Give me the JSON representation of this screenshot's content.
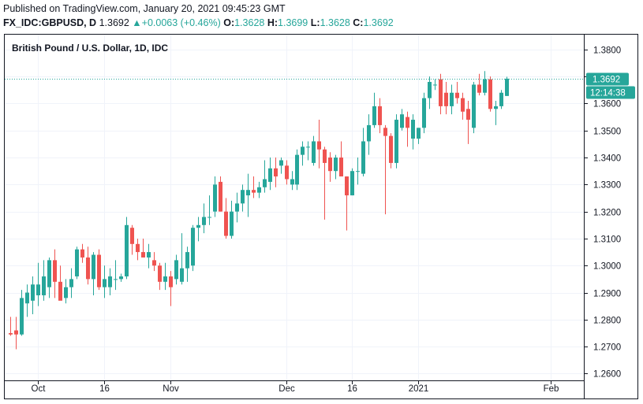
{
  "header": {
    "published": "Published on TradingView.com, January 20, 2021 09:45:23 GMT",
    "symbol": "FX_IDC:GBPUSD, D",
    "last": "1.3692",
    "change": "+0.0063 (+0.46%)",
    "open_label": "O:",
    "open": "1.3628",
    "high_label": "H:",
    "high": "1.3699",
    "low_label": "L:",
    "low": "1.3628",
    "close_label": "C:",
    "close": "1.3692"
  },
  "colors": {
    "up": "#26a69a",
    "down": "#ef5350",
    "grid": "#f0f3fa",
    "axis": "#131722",
    "price_line": "#26a69a"
  },
  "chart_data": {
    "type": "candlestick",
    "title": "British Pound / U.S. Dollar, 1D, IDC",
    "current_price_label": "1.3692",
    "countdown_label": "12:14:38",
    "last_price": 1.3692,
    "ylim": [
      1.2575,
      1.3855
    ],
    "y_ticks": [
      1.26,
      1.27,
      1.28,
      1.29,
      1.3,
      1.31,
      1.32,
      1.33,
      1.34,
      1.35,
      1.36,
      1.37,
      1.38
    ],
    "y_tick_labels": [
      "1.2600",
      "1.2700",
      "1.2800",
      "1.2900",
      "1.3000",
      "1.3100",
      "1.3200",
      "1.3300",
      "1.3400",
      "1.3500",
      "1.3600",
      "1.3700",
      "1.3800"
    ],
    "x_labels": [
      {
        "label": "Oct",
        "index": 5
      },
      {
        "label": "16",
        "index": 17
      },
      {
        "label": "Nov",
        "index": 29
      },
      {
        "label": "Dec",
        "index": 50
      },
      {
        "label": "16",
        "index": 62
      },
      {
        "label": "2021",
        "index": 74
      },
      {
        "label": "Feb",
        "index": 98
      }
    ],
    "x_range": [
      -1,
      104
    ],
    "candles": [
      {
        "o": 1.275,
        "h": 1.281,
        "l": 1.274,
        "c": 1.2745
      },
      {
        "o": 1.276,
        "h": 1.281,
        "l": 1.269,
        "c": 1.2745
      },
      {
        "o": 1.2745,
        "h": 1.291,
        "l": 1.274,
        "c": 1.288
      },
      {
        "o": 1.286,
        "h": 1.293,
        "l": 1.281,
        "c": 1.29
      },
      {
        "o": 1.287,
        "h": 1.296,
        "l": 1.282,
        "c": 1.293
      },
      {
        "o": 1.289,
        "h": 1.301,
        "l": 1.285,
        "c": 1.293
      },
      {
        "o": 1.289,
        "h": 1.302,
        "l": 1.287,
        "c": 1.296
      },
      {
        "o": 1.292,
        "h": 1.303,
        "l": 1.288,
        "c": 1.302
      },
      {
        "o": 1.302,
        "h": 1.306,
        "l": 1.288,
        "c": 1.294
      },
      {
        "o": 1.294,
        "h": 1.3,
        "l": 1.288,
        "c": 1.287
      },
      {
        "o": 1.288,
        "h": 1.295,
        "l": 1.286,
        "c": 1.292
      },
      {
        "o": 1.292,
        "h": 1.299,
        "l": 1.288,
        "c": 1.295
      },
      {
        "o": 1.296,
        "h": 1.307,
        "l": 1.295,
        "c": 1.306
      },
      {
        "o": 1.306,
        "h": 1.308,
        "l": 1.301,
        "c": 1.303
      },
      {
        "o": 1.303,
        "h": 1.307,
        "l": 1.293,
        "c": 1.295
      },
      {
        "o": 1.295,
        "h": 1.305,
        "l": 1.289,
        "c": 1.304
      },
      {
        "o": 1.304,
        "h": 1.306,
        "l": 1.291,
        "c": 1.292
      },
      {
        "o": 1.292,
        "h": 1.3,
        "l": 1.288,
        "c": 1.295
      },
      {
        "o": 1.292,
        "h": 1.299,
        "l": 1.289,
        "c": 1.296
      },
      {
        "o": 1.295,
        "h": 1.302,
        "l": 1.291,
        "c": 1.295
      },
      {
        "o": 1.295,
        "h": 1.297,
        "l": 1.294,
        "c": 1.296
      },
      {
        "o": 1.296,
        "h": 1.318,
        "l": 1.295,
        "c": 1.315
      },
      {
        "o": 1.314,
        "h": 1.315,
        "l": 1.304,
        "c": 1.308
      },
      {
        "o": 1.308,
        "h": 1.31,
        "l": 1.302,
        "c": 1.305
      },
      {
        "o": 1.305,
        "h": 1.31,
        "l": 1.303,
        "c": 1.303
      },
      {
        "o": 1.303,
        "h": 1.308,
        "l": 1.299,
        "c": 1.305
      },
      {
        "o": 1.302,
        "h": 1.305,
        "l": 1.298,
        "c": 1.3
      },
      {
        "o": 1.3,
        "h": 1.301,
        "l": 1.291,
        "c": 1.294
      },
      {
        "o": 1.294,
        "h": 1.301,
        "l": 1.291,
        "c": 1.296
      },
      {
        "o": 1.296,
        "h": 1.298,
        "l": 1.285,
        "c": 1.292
      },
      {
        "o": 1.295,
        "h": 1.304,
        "l": 1.293,
        "c": 1.302
      },
      {
        "o": 1.294,
        "h": 1.312,
        "l": 1.293,
        "c": 1.299
      },
      {
        "o": 1.299,
        "h": 1.307,
        "l": 1.294,
        "c": 1.305
      },
      {
        "o": 1.3,
        "h": 1.315,
        "l": 1.298,
        "c": 1.314
      },
      {
        "o": 1.314,
        "h": 1.318,
        "l": 1.309,
        "c": 1.315
      },
      {
        "o": 1.315,
        "h": 1.323,
        "l": 1.312,
        "c": 1.318
      },
      {
        "o": 1.318,
        "h": 1.326,
        "l": 1.315,
        "c": 1.318
      },
      {
        "o": 1.32,
        "h": 1.333,
        "l": 1.318,
        "c": 1.33
      },
      {
        "o": 1.331,
        "h": 1.333,
        "l": 1.32,
        "c": 1.32
      },
      {
        "o": 1.32,
        "h": 1.325,
        "l": 1.31,
        "c": 1.311
      },
      {
        "o": 1.311,
        "h": 1.324,
        "l": 1.31,
        "c": 1.32
      },
      {
        "o": 1.32,
        "h": 1.327,
        "l": 1.316,
        "c": 1.323
      },
      {
        "o": 1.323,
        "h": 1.33,
        "l": 1.32,
        "c": 1.328
      },
      {
        "o": 1.326,
        "h": 1.334,
        "l": 1.318,
        "c": 1.328
      },
      {
        "o": 1.328,
        "h": 1.333,
        "l": 1.325,
        "c": 1.327
      },
      {
        "o": 1.327,
        "h": 1.331,
        "l": 1.325,
        "c": 1.329
      },
      {
        "o": 1.329,
        "h": 1.339,
        "l": 1.327,
        "c": 1.332
      },
      {
        "o": 1.331,
        "h": 1.34,
        "l": 1.328,
        "c": 1.336
      },
      {
        "o": 1.336,
        "h": 1.34,
        "l": 1.329,
        "c": 1.333
      },
      {
        "o": 1.337,
        "h": 1.34,
        "l": 1.334,
        "c": 1.339
      },
      {
        "o": 1.337,
        "h": 1.339,
        "l": 1.33,
        "c": 1.332
      },
      {
        "o": 1.33,
        "h": 1.335,
        "l": 1.328,
        "c": 1.332
      },
      {
        "o": 1.33,
        "h": 1.343,
        "l": 1.328,
        "c": 1.341
      },
      {
        "o": 1.341,
        "h": 1.346,
        "l": 1.337,
        "c": 1.344
      },
      {
        "o": 1.344,
        "h": 1.346,
        "l": 1.339,
        "c": 1.344
      },
      {
        "o": 1.338,
        "h": 1.348,
        "l": 1.337,
        "c": 1.346
      },
      {
        "o": 1.346,
        "h": 1.354,
        "l": 1.336,
        "c": 1.343
      },
      {
        "o": 1.343,
        "h": 1.344,
        "l": 1.317,
        "c": 1.338
      },
      {
        "o": 1.34,
        "h": 1.342,
        "l": 1.331,
        "c": 1.335
      },
      {
        "o": 1.335,
        "h": 1.341,
        "l": 1.332,
        "c": 1.34
      },
      {
        "o": 1.34,
        "h": 1.346,
        "l": 1.333,
        "c": 1.333
      },
      {
        "o": 1.333,
        "h": 1.333,
        "l": 1.313,
        "c": 1.326
      },
      {
        "o": 1.326,
        "h": 1.336,
        "l": 1.326,
        "c": 1.335
      },
      {
        "o": 1.335,
        "h": 1.34,
        "l": 1.33,
        "c": 1.335
      },
      {
        "o": 1.334,
        "h": 1.351,
        "l": 1.333,
        "c": 1.346
      },
      {
        "o": 1.346,
        "h": 1.356,
        "l": 1.341,
        "c": 1.352
      },
      {
        "o": 1.352,
        "h": 1.364,
        "l": 1.351,
        "c": 1.359
      },
      {
        "o": 1.359,
        "h": 1.362,
        "l": 1.349,
        "c": 1.352
      },
      {
        "o": 1.351,
        "h": 1.352,
        "l": 1.319,
        "c": 1.348
      },
      {
        "o": 1.348,
        "h": 1.349,
        "l": 1.336,
        "c": 1.338
      },
      {
        "o": 1.338,
        "h": 1.356,
        "l": 1.336,
        "c": 1.354
      },
      {
        "o": 1.351,
        "h": 1.358,
        "l": 1.35,
        "c": 1.356
      },
      {
        "o": 1.355,
        "h": 1.357,
        "l": 1.344,
        "c": 1.351
      },
      {
        "o": 1.347,
        "h": 1.356,
        "l": 1.343,
        "c": 1.354
      },
      {
        "o": 1.347,
        "h": 1.351,
        "l": 1.345,
        "c": 1.351
      },
      {
        "o": 1.351,
        "h": 1.364,
        "l": 1.349,
        "c": 1.362
      },
      {
        "o": 1.362,
        "h": 1.37,
        "l": 1.358,
        "c": 1.368
      },
      {
        "o": 1.367,
        "h": 1.369,
        "l": 1.365,
        "c": 1.367
      },
      {
        "o": 1.369,
        "h": 1.371,
        "l": 1.356,
        "c": 1.359
      },
      {
        "o": 1.364,
        "h": 1.368,
        "l": 1.356,
        "c": 1.359
      },
      {
        "o": 1.359,
        "h": 1.367,
        "l": 1.356,
        "c": 1.364
      },
      {
        "o": 1.364,
        "h": 1.368,
        "l": 1.36,
        "c": 1.362
      },
      {
        "o": 1.362,
        "h": 1.364,
        "l": 1.354,
        "c": 1.357
      },
      {
        "o": 1.358,
        "h": 1.361,
        "l": 1.345,
        "c": 1.354
      },
      {
        "o": 1.351,
        "h": 1.368,
        "l": 1.349,
        "c": 1.367
      },
      {
        "o": 1.367,
        "h": 1.371,
        "l": 1.363,
        "c": 1.364
      },
      {
        "o": 1.364,
        "h": 1.372,
        "l": 1.363,
        "c": 1.369
      },
      {
        "o": 1.369,
        "h": 1.37,
        "l": 1.357,
        "c": 1.358
      },
      {
        "o": 1.358,
        "h": 1.361,
        "l": 1.352,
        "c": 1.359
      },
      {
        "o": 1.359,
        "h": 1.365,
        "l": 1.358,
        "c": 1.364
      },
      {
        "o": 1.3628,
        "h": 1.3699,
        "l": 1.3628,
        "c": 1.3692
      }
    ]
  }
}
